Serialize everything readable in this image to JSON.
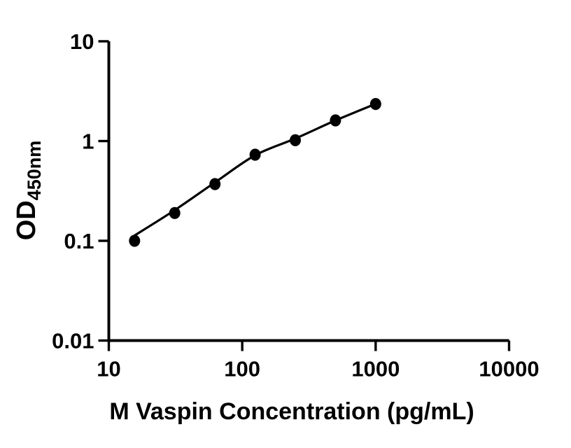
{
  "figure": {
    "background": "#ffffff",
    "ink_color": "#000000"
  },
  "chart_data": {
    "type": "scatter",
    "title": "",
    "xlabel": "M Vaspin Concentration (pg/mL)",
    "ylabel_main": "OD",
    "ylabel_sub": "450nm",
    "x_scale": "log10",
    "y_scale": "log10",
    "xlim": [
      10,
      10000
    ],
    "ylim": [
      0.01,
      10
    ],
    "x_ticks": [
      10,
      100,
      1000,
      10000
    ],
    "x_tick_labels": [
      "10",
      "100",
      "1000",
      "10000"
    ],
    "y_ticks": [
      10,
      1,
      0.1,
      0.01
    ],
    "y_tick_labels": [
      "10",
      "1",
      "0.1",
      "0.01"
    ],
    "grid": false,
    "legend": null,
    "series": [
      {
        "name": "fitted-standard-curve",
        "type": "line",
        "color": "#000000",
        "x": [
          15.6,
          31.2,
          62.5,
          125,
          250,
          500,
          1000
        ],
        "y": [
          0.113,
          0.203,
          0.385,
          0.72,
          1.06,
          1.61,
          2.36
        ]
      },
      {
        "name": "standard-data-points",
        "type": "scatter",
        "marker": "filled-circle",
        "color": "#000000",
        "x": [
          15.6,
          31.2,
          62.5,
          125,
          250,
          500,
          1000
        ],
        "y": [
          0.1,
          0.19,
          0.37,
          0.73,
          1.02,
          1.61,
          2.35
        ]
      }
    ]
  }
}
